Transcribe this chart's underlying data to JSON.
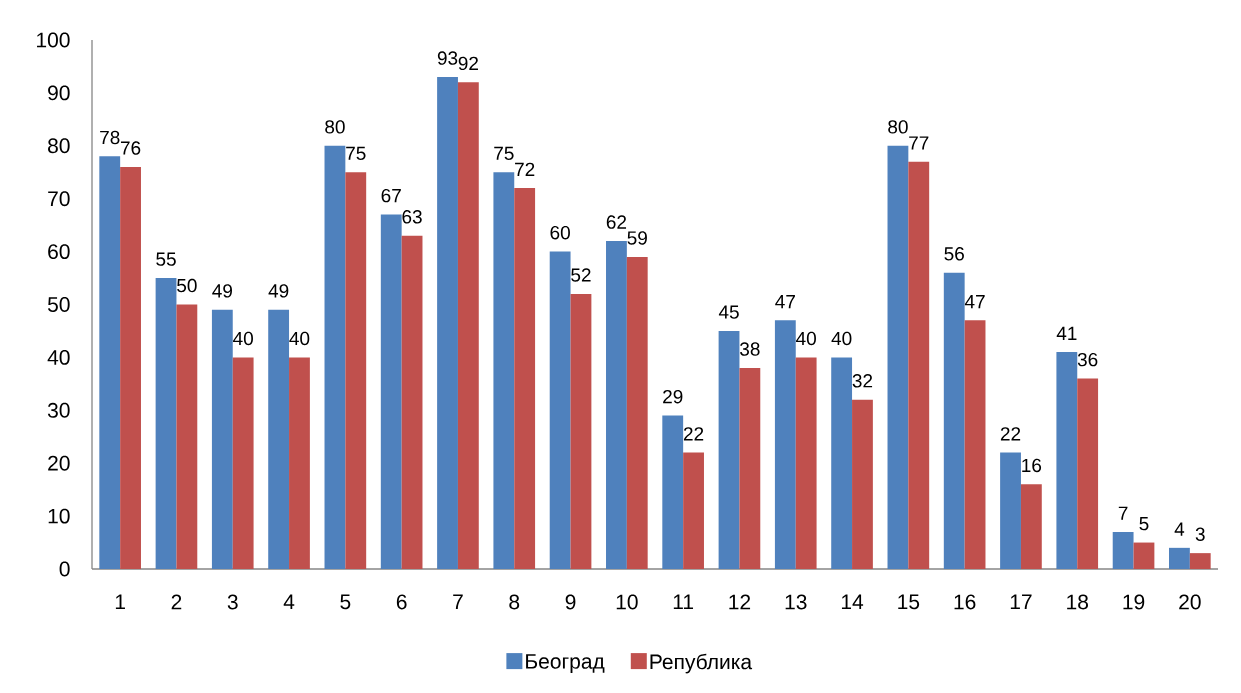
{
  "chart_data": {
    "type": "bar",
    "categories": [
      "1",
      "2",
      "3",
      "4",
      "5",
      "6",
      "7",
      "8",
      "9",
      "10",
      "11",
      "12",
      "13",
      "14",
      "15",
      "16",
      "17",
      "18",
      "19",
      "20"
    ],
    "series": [
      {
        "name": "Београд",
        "color": "#4f81bd",
        "values": [
          78,
          55,
          49,
          49,
          80,
          67,
          93,
          75,
          60,
          62,
          29,
          45,
          47,
          40,
          80,
          56,
          22,
          41,
          7,
          4
        ]
      },
      {
        "name": "Република",
        "color": "#c0504d",
        "values": [
          76,
          50,
          40,
          40,
          75,
          63,
          92,
          72,
          52,
          59,
          22,
          38,
          40,
          32,
          77,
          47,
          16,
          36,
          5,
          3
        ]
      }
    ],
    "ylim": [
      0,
      100
    ],
    "yticks": [
      0,
      10,
      20,
      30,
      40,
      50,
      60,
      70,
      80,
      90,
      100
    ],
    "data_labels": true,
    "legend": "bottom"
  }
}
